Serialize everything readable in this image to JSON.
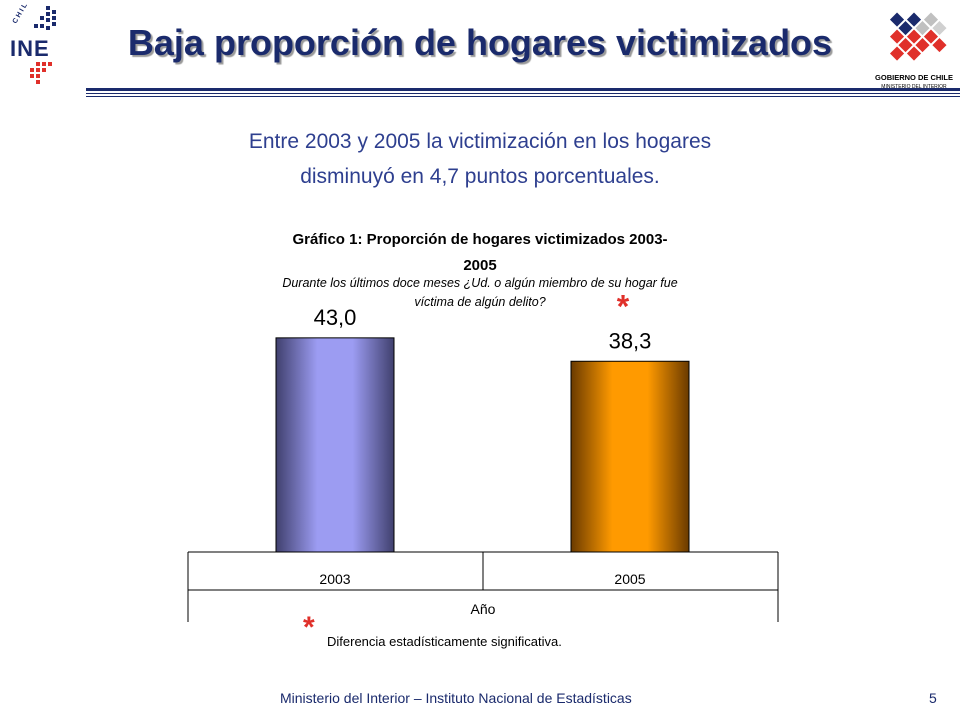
{
  "header": {
    "title": "Baja proporción de hogares victimizados",
    "logo_left_icon": "ine-logo-icon",
    "logo_left_text": "INE",
    "logo_left_arc": "CHILE",
    "logo_right_icon": "gobierno-de-chile-logo-icon",
    "logo_right_line1": "GOBIERNO DE CHILE",
    "logo_right_line2": "MINISTERIO DEL INTERIOR"
  },
  "subtitle": {
    "line1": "Entre 2003 y 2005 la victimización en los hogares",
    "line2": "disminuyó en 4,7 puntos porcentuales."
  },
  "chart_data": {
    "type": "bar",
    "title_line1": "Gráfico 1: Proporción de hogares victimizados 2003-",
    "title_line2": "2005",
    "subtitle_line1": "Durante los últimos doce meses ¿Ud. o algún miembro de su hogar fue",
    "subtitle_line2": "víctima de algún delito?",
    "categories": [
      "2003",
      "2005"
    ],
    "values": [
      43.0,
      38.3
    ],
    "value_labels": [
      "43,0",
      "38,3"
    ],
    "significance_marks": [
      "",
      "*"
    ],
    "xlabel": "Año",
    "ylabel": "",
    "ylim": [
      0,
      50
    ],
    "grid": false,
    "legend": "none",
    "colors": {
      "2003": "#9c9cf2",
      "2005": "#ff9a00"
    },
    "colors_dark": {
      "2003": "#40406e",
      "2005": "#6a3a00"
    },
    "star_color": "#e0302a"
  },
  "note": {
    "star": "*",
    "text": "Diferencia estadísticamente significativa."
  },
  "footer": {
    "text": "Ministerio del Interior – Instituto Nacional de Estadísticas",
    "page": "5"
  }
}
